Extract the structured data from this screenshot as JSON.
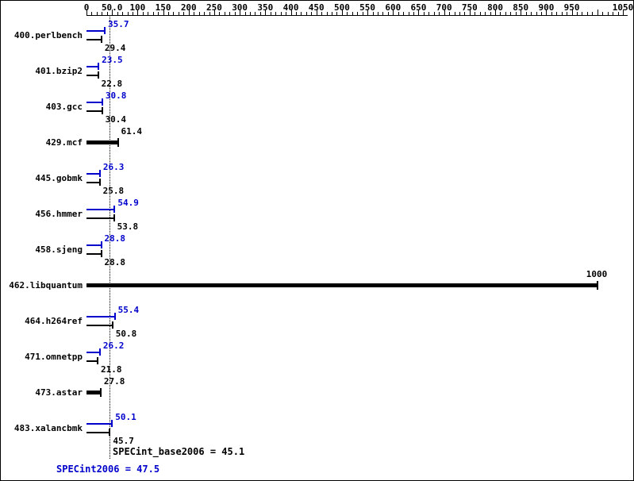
{
  "chart_data": {
    "type": "bar",
    "orientation": "horizontal",
    "x_axis": {
      "min": 0,
      "max": 1050,
      "tick_labels": [
        "0",
        "50.0",
        "100",
        "150",
        "200",
        "250",
        "300",
        "350",
        "400",
        "450",
        "500",
        "550",
        "600",
        "650",
        "700",
        "750",
        "800",
        "850",
        "900",
        "950",
        "1050"
      ],
      "tick_values": [
        0,
        50,
        100,
        150,
        200,
        250,
        300,
        350,
        400,
        450,
        500,
        550,
        600,
        650,
        700,
        750,
        800,
        850,
        900,
        950,
        1050
      ],
      "minor_tick_interval": 10,
      "major_tick_interval": 50
    },
    "series_names": [
      "peak",
      "base"
    ],
    "benchmarks": [
      {
        "name": "400.perlbench",
        "peak": {
          "value": 35.7,
          "label": "35.7"
        },
        "base": {
          "value": 29.4,
          "label": "29.4"
        }
      },
      {
        "name": "401.bzip2",
        "peak": {
          "value": 23.5,
          "label": "23.5"
        },
        "base": {
          "value": 22.8,
          "label": "22.8"
        }
      },
      {
        "name": "403.gcc",
        "peak": {
          "value": 30.8,
          "label": "30.8"
        },
        "base": {
          "value": 30.4,
          "label": "30.4"
        }
      },
      {
        "name": "429.mcf",
        "single": {
          "value": 61.4,
          "label": "61.4"
        }
      },
      {
        "name": "445.gobmk",
        "peak": {
          "value": 26.3,
          "label": "26.3"
        },
        "base": {
          "value": 25.8,
          "label": "25.8"
        }
      },
      {
        "name": "456.hmmer",
        "peak": {
          "value": 54.9,
          "label": "54.9"
        },
        "base": {
          "value": 53.8,
          "label": "53.8"
        }
      },
      {
        "name": "458.sjeng",
        "peak": {
          "value": 28.8,
          "label": "28.8"
        },
        "base": {
          "value": 28.8,
          "label": "28.8"
        }
      },
      {
        "name": "462.libquantum",
        "single": {
          "value": 1000,
          "label": "1000"
        }
      },
      {
        "name": "464.h264ref",
        "peak": {
          "value": 55.4,
          "label": "55.4"
        },
        "base": {
          "value": 50.8,
          "label": "50.8"
        }
      },
      {
        "name": "471.omnetpp",
        "peak": {
          "value": 26.2,
          "label": "26.2"
        },
        "base": {
          "value": 21.8,
          "label": "21.8"
        }
      },
      {
        "name": "473.astar",
        "single": {
          "value": 27.8,
          "label": "27.8"
        }
      },
      {
        "name": "483.xalancbmk",
        "peak": {
          "value": 50.1,
          "label": "50.1"
        },
        "base": {
          "value": 45.7,
          "label": "45.7"
        }
      }
    ],
    "mean_line": {
      "value": 45.1,
      "style": "dotted",
      "color": "#000000"
    },
    "colors": {
      "peak": "#0000cc",
      "base": "#000000",
      "background": "#ffffff",
      "border": "#000000"
    }
  },
  "footer": {
    "base_summary": "SPECint_base2006 = 45.1",
    "peak_summary": "SPECint2006 = 47.5"
  }
}
